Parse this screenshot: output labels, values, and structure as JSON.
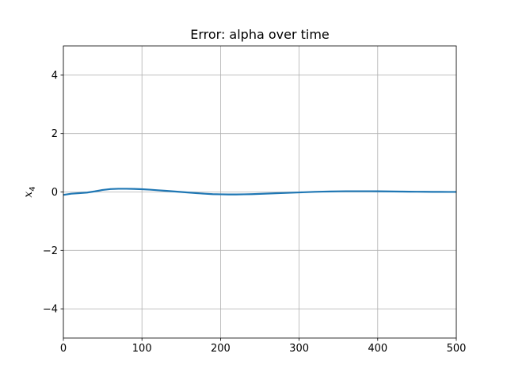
{
  "chart_data": {
    "type": "line",
    "title": "Error: alpha over time",
    "xlabel": "",
    "ylabel": {
      "main": "x",
      "sub": "4"
    },
    "xlim": [
      0,
      500
    ],
    "ylim": [
      -5,
      5
    ],
    "xticks": [
      0,
      100,
      200,
      300,
      400,
      500
    ],
    "yticks": [
      -4,
      -2,
      0,
      2,
      4
    ],
    "ytick_labels": [
      "−4",
      "−2",
      "0",
      "2",
      "4"
    ],
    "grid": true,
    "series": [
      {
        "color": "#1f77b4",
        "x": [
          0,
          10,
          20,
          30,
          40,
          50,
          60,
          70,
          80,
          90,
          100,
          110,
          120,
          130,
          140,
          150,
          160,
          170,
          180,
          190,
          200,
          210,
          220,
          230,
          240,
          250,
          260,
          270,
          280,
          290,
          300,
          310,
          320,
          330,
          340,
          350,
          360,
          370,
          380,
          390,
          400,
          410,
          420,
          430,
          440,
          450,
          460,
          470,
          480,
          490,
          500
        ],
        "y": [
          -0.1,
          -0.06,
          -0.04,
          -0.02,
          0.02,
          0.07,
          0.1,
          0.11,
          0.11,
          0.105,
          0.095,
          0.08,
          0.06,
          0.04,
          0.02,
          0.0,
          -0.02,
          -0.04,
          -0.06,
          -0.075,
          -0.08,
          -0.085,
          -0.085,
          -0.08,
          -0.075,
          -0.065,
          -0.055,
          -0.045,
          -0.035,
          -0.025,
          -0.015,
          -0.005,
          0.005,
          0.012,
          0.018,
          0.022,
          0.025,
          0.026,
          0.026,
          0.025,
          0.023,
          0.02,
          0.017,
          0.014,
          0.011,
          0.008,
          0.006,
          0.004,
          0.003,
          0.002,
          0.002
        ]
      }
    ]
  }
}
